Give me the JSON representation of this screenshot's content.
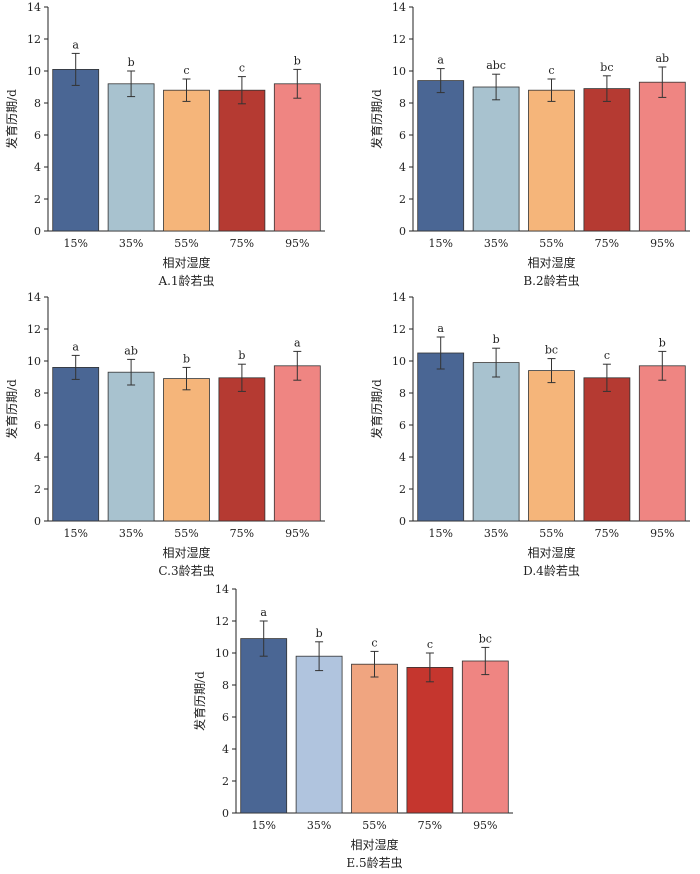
{
  "chart_data": [
    {
      "type": "bar",
      "caption": "A.1龄若虫",
      "xlabel": "相对湿度",
      "ylabel": "发育历期/d",
      "ylim": [
        0,
        14
      ],
      "yticks": [
        0,
        2,
        4,
        6,
        8,
        10,
        12,
        14
      ],
      "categories": [
        "15%",
        "35%",
        "55%",
        "75%",
        "95%"
      ],
      "values": [
        10.1,
        9.2,
        8.8,
        8.8,
        9.2
      ],
      "errors": [
        1.0,
        0.8,
        0.7,
        0.85,
        0.9
      ],
      "letters": [
        "a",
        "b",
        "c",
        "c",
        "b"
      ],
      "colors": [
        "#4a6694",
        "#a8c2cf",
        "#f5b57a",
        "#b53a32",
        "#ef8582"
      ]
    },
    {
      "type": "bar",
      "caption": "B.2龄若虫",
      "xlabel": "相对湿度",
      "ylabel": "发育历期/d",
      "ylim": [
        0,
        14
      ],
      "yticks": [
        0,
        2,
        4,
        6,
        8,
        10,
        12,
        14
      ],
      "categories": [
        "15%",
        "35%",
        "55%",
        "75%",
        "95%"
      ],
      "values": [
        9.4,
        9.0,
        8.8,
        8.9,
        9.3
      ],
      "errors": [
        0.75,
        0.8,
        0.7,
        0.8,
        0.95
      ],
      "letters": [
        "a",
        "abc",
        "c",
        "bc",
        "ab"
      ],
      "colors": [
        "#4a6694",
        "#a8c2cf",
        "#f5b57a",
        "#b53a32",
        "#ef8582"
      ]
    },
    {
      "type": "bar",
      "caption": "C.3龄若虫",
      "xlabel": "相对湿度",
      "ylabel": "发育历期/d",
      "ylim": [
        0,
        14
      ],
      "yticks": [
        0,
        2,
        4,
        6,
        8,
        10,
        12,
        14
      ],
      "categories": [
        "15%",
        "35%",
        "55%",
        "75%",
        "95%"
      ],
      "values": [
        9.6,
        9.3,
        8.9,
        8.95,
        9.7
      ],
      "errors": [
        0.75,
        0.8,
        0.7,
        0.85,
        0.9
      ],
      "letters": [
        "a",
        "ab",
        "b",
        "b",
        "a"
      ],
      "colors": [
        "#4a6694",
        "#a8c2cf",
        "#f5b57a",
        "#b53a32",
        "#ef8582"
      ]
    },
    {
      "type": "bar",
      "caption": "D.4龄若虫",
      "xlabel": "相对湿度",
      "ylabel": "发育历期/d",
      "ylim": [
        0,
        14
      ],
      "yticks": [
        0,
        2,
        4,
        6,
        8,
        10,
        12,
        14
      ],
      "categories": [
        "15%",
        "35%",
        "55%",
        "75%",
        "95%"
      ],
      "values": [
        10.5,
        9.9,
        9.4,
        8.95,
        9.7
      ],
      "errors": [
        1.0,
        0.9,
        0.75,
        0.85,
        0.9
      ],
      "letters": [
        "a",
        "b",
        "bc",
        "c",
        "b"
      ],
      "colors": [
        "#4a6694",
        "#a8c2cf",
        "#f5b57a",
        "#b53a32",
        "#ef8582"
      ]
    },
    {
      "type": "bar",
      "caption": "E.5龄若虫",
      "xlabel": "相对湿度",
      "ylabel": "发育历期/d",
      "ylim": [
        0,
        14
      ],
      "yticks": [
        0,
        2,
        4,
        6,
        8,
        10,
        12,
        14
      ],
      "categories": [
        "15%",
        "35%",
        "55%",
        "75%",
        "95%"
      ],
      "values": [
        10.9,
        9.8,
        9.3,
        9.1,
        9.5
      ],
      "errors": [
        1.1,
        0.9,
        0.8,
        0.9,
        0.85
      ],
      "letters": [
        "a",
        "b",
        "c",
        "c",
        "bc"
      ],
      "colors": [
        "#4a6694",
        "#b0c4de",
        "#f0a580",
        "#c5362e",
        "#ef8582"
      ]
    }
  ]
}
